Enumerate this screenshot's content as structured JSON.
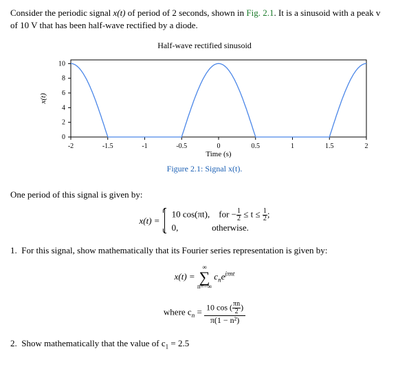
{
  "intro": {
    "pre": "Consider the periodic signal ",
    "sig": "x(t)",
    "mid1": " of period of 2 seconds, shown in ",
    "figref": "Fig. 2.1",
    "mid2": ". It is a sinusoid with a peak v",
    "line2": "of 10 V that has been half-wave rectified by a diode."
  },
  "chart": {
    "title": "Half-wave rectified sinusoid",
    "xlabel": "Time (s)",
    "ylabel": "x(t)",
    "xlim": [
      -2,
      2
    ],
    "ylim": [
      0,
      10.5
    ],
    "xticks": [
      -2,
      -1.5,
      -1,
      -0.5,
      0,
      0.5,
      1,
      1.5,
      2
    ],
    "yticks": [
      0,
      2,
      4,
      6,
      8,
      10
    ],
    "line_color": "#4a86e8",
    "axis_color": "#000000",
    "background": "#ffffff"
  },
  "caption": "Figure 2.1: Signal x(t).",
  "period_text": "One period of this signal is given by:",
  "piecewise": {
    "lhs": "x(t) = ",
    "row1_left": "10 cos(πt),",
    "row1_right_pre": "for  −",
    "row1_right_mid": " ≤ t ≤ ",
    "row1_right_post": ";",
    "half_num": "1",
    "half_den": "2",
    "row2_left": "0,",
    "row2_right": "otherwise."
  },
  "q1": {
    "num": "1.",
    "text": "For this signal, show mathematically that its Fourier series representation is given by:"
  },
  "fourier": {
    "lhs": "x(t)  =  ",
    "sum_top": "∞",
    "sum_bot": "n=−∞",
    "term_pre": " c",
    "term_sub": "n",
    "term_e": "e",
    "term_exp": "jπnt"
  },
  "cn": {
    "where": "where    c",
    "sub": "n",
    "eq": "  =  ",
    "num_pre": "10 cos ",
    "num_inner_num": "πn",
    "num_inner_den": "2",
    "den": "π(1 − n²)"
  },
  "q2": {
    "num": "2.",
    "pre": "Show mathematically that the value of c",
    "sub": "1",
    "post": " = 2.5"
  }
}
